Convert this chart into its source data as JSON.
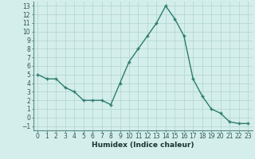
{
  "x": [
    0,
    1,
    2,
    3,
    4,
    5,
    6,
    7,
    8,
    9,
    10,
    11,
    12,
    13,
    14,
    15,
    16,
    17,
    18,
    19,
    20,
    21,
    22,
    23
  ],
  "y": [
    5,
    4.5,
    4.5,
    3.5,
    3,
    2,
    2,
    2,
    1.5,
    4,
    6.5,
    8,
    9.5,
    11,
    13,
    11.5,
    9.5,
    4.5,
    2.5,
    1,
    0.5,
    -0.5,
    -0.7,
    -0.7
  ],
  "line_color": "#2d7d6e",
  "marker": "+",
  "bg_color": "#d4eeeb",
  "grid_color": "#b0d4d0",
  "xlabel": "Humidex (Indice chaleur)",
  "xlim": [
    -0.5,
    23.5
  ],
  "ylim": [
    -1.5,
    13.5
  ],
  "yticks": [
    -1,
    0,
    1,
    2,
    3,
    4,
    5,
    6,
    7,
    8,
    9,
    10,
    11,
    12,
    13
  ],
  "xticks": [
    0,
    1,
    2,
    3,
    4,
    5,
    6,
    7,
    8,
    9,
    10,
    11,
    12,
    13,
    14,
    15,
    16,
    17,
    18,
    19,
    20,
    21,
    22,
    23
  ],
  "tick_fontsize": 5.5,
  "xlabel_fontsize": 6.5,
  "linewidth": 1.0,
  "markersize": 3.5,
  "markeredgewidth": 1.0
}
